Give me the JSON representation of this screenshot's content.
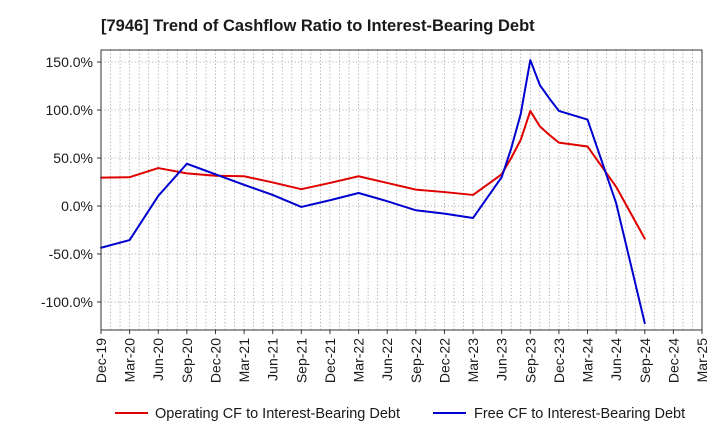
{
  "chart_data": {
    "type": "line",
    "title": "[7946]  Trend of Cashflow Ratio to Interest-Bearing Debt",
    "x_range": [
      "2019-12",
      "2025-03"
    ],
    "x_tick_values": [
      "2019-12",
      "2020-03",
      "2020-06",
      "2020-09",
      "2020-12",
      "2021-03",
      "2021-06",
      "2021-09",
      "2021-12",
      "2022-03",
      "2022-06",
      "2022-09",
      "2022-12",
      "2023-03",
      "2023-06",
      "2023-09",
      "2023-12",
      "2024-03",
      "2024-06",
      "2024-09",
      "2024-12",
      "2025-03"
    ],
    "x_tick_labels": [
      "Dec-19",
      "Mar-20",
      "Jun-20",
      "Sep-20",
      "Dec-20",
      "Mar-21",
      "Jun-21",
      "Sep-21",
      "Dec-21",
      "Mar-22",
      "Jun-22",
      "Sep-22",
      "Dec-22",
      "Mar-23",
      "Jun-23",
      "Sep-23",
      "Dec-23",
      "Mar-24",
      "Jun-24",
      "Sep-24",
      "Dec-24",
      "Mar-25"
    ],
    "y_ticks": [
      150,
      100,
      50,
      0,
      -50,
      -100
    ],
    "y_tick_labels": [
      "150.0%",
      "100.0%",
      "50.0%",
      "0.0%",
      "-50.0%",
      "-100.0%"
    ],
    "ylim": [
      -129.2,
      162.5
    ],
    "grid": true,
    "legend_position": "bottom",
    "series": [
      {
        "name": "Operating CF to Interest-Bearing Debt",
        "color": "#e00000",
        "points": [
          {
            "x": "2019-12",
            "y": 29.5
          },
          {
            "x": "2020-03",
            "y": 30
          },
          {
            "x": "2020-06",
            "y": 39.5
          },
          {
            "x": "2020-09",
            "y": 34
          },
          {
            "x": "2020-12",
            "y": 31.5
          },
          {
            "x": "2021-03",
            "y": 31
          },
          {
            "x": "2021-06",
            "y": 24.5
          },
          {
            "x": "2021-09",
            "y": 17.5
          },
          {
            "x": "2021-12",
            "y": 24
          },
          {
            "x": "2022-03",
            "y": 31
          },
          {
            "x": "2022-06",
            "y": 24
          },
          {
            "x": "2022-09",
            "y": 17
          },
          {
            "x": "2022-12",
            "y": 14.5
          },
          {
            "x": "2023-03",
            "y": 11.5
          },
          {
            "x": "2023-06",
            "y": 33
          },
          {
            "x": "2023-07",
            "y": 50
          },
          {
            "x": "2023-08",
            "y": 69
          },
          {
            "x": "2023-09",
            "y": 99
          },
          {
            "x": "2023-10",
            "y": 83
          },
          {
            "x": "2023-11",
            "y": 74
          },
          {
            "x": "2023-12",
            "y": 66
          },
          {
            "x": "2024-03",
            "y": 62
          },
          {
            "x": "2024-06",
            "y": 20
          },
          {
            "x": "2024-09",
            "y": -34
          }
        ]
      },
      {
        "name": "Free CF to Interest-Bearing Debt",
        "color": "#0000d0",
        "points": [
          {
            "x": "2019-12",
            "y": -43.5
          },
          {
            "x": "2020-03",
            "y": -35.5
          },
          {
            "x": "2020-06",
            "y": 10.5
          },
          {
            "x": "2020-09",
            "y": 44
          },
          {
            "x": "2020-12",
            "y": 33
          },
          {
            "x": "2021-03",
            "y": 22
          },
          {
            "x": "2021-06",
            "y": 11.5
          },
          {
            "x": "2021-09",
            "y": -1
          },
          {
            "x": "2021-12",
            "y": 6
          },
          {
            "x": "2022-03",
            "y": 13.5
          },
          {
            "x": "2022-06",
            "y": 5
          },
          {
            "x": "2022-09",
            "y": -4.5
          },
          {
            "x": "2022-12",
            "y": -8
          },
          {
            "x": "2023-03",
            "y": -12.5
          },
          {
            "x": "2023-06",
            "y": 30
          },
          {
            "x": "2023-07",
            "y": 60
          },
          {
            "x": "2023-08",
            "y": 96
          },
          {
            "x": "2023-09",
            "y": 152
          },
          {
            "x": "2023-10",
            "y": 126
          },
          {
            "x": "2023-11",
            "y": 112
          },
          {
            "x": "2023-12",
            "y": 99
          },
          {
            "x": "2024-03",
            "y": 90
          },
          {
            "x": "2024-06",
            "y": 3
          },
          {
            "x": "2024-09",
            "y": -122
          }
        ]
      }
    ]
  }
}
